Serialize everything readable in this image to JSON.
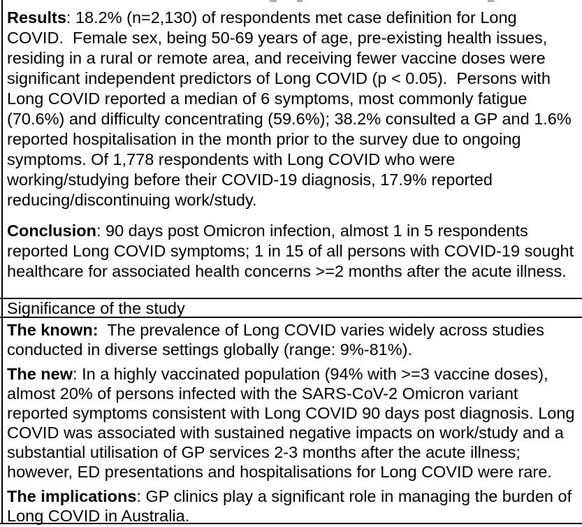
{
  "page": {
    "background_color": "#ffffff",
    "text_color": "#000000",
    "rule_color": "#000000",
    "remnant_color": "#b3aba4"
  },
  "abstract": {
    "paragraphs": [
      {
        "label": "Results",
        "sep": ": ",
        "text": "18.2% (n=2,130) of respondents met case definition for Long COVID.  Female sex, being 50-69 years of age, pre-existing health issues, residing in a rural or remote area, and receiving fewer vaccine doses were significant independent predictors of Long COVID (p < 0.05).  Persons with Long COVID reported a median of 6 symptoms, most commonly fatigue (70.6%) and difficulty concentrating (59.6%); 38.2% consulted a GP and 1.6% reported hospitalisation in the month prior to the survey due to ongoing symptoms. Of 1,778 respondents with Long COVID who were working/studying before their COVID-19 diagnosis, 17.9% reported reducing/discontinuing work/study."
      },
      {
        "label": "Conclusion",
        "sep": ": ",
        "text": "90 days post Omicron infection, almost 1 in 5 respondents reported Long COVID symptoms; 1 in 15 of all persons with COVID-19 sought healthcare for associated health concerns >=2 months after the acute illness."
      }
    ]
  },
  "significance": {
    "heading": "Significance of the study",
    "paragraphs": [
      {
        "label": "The known:",
        "sep": "  ",
        "text": "The prevalence of Long COVID varies widely across studies conducted in diverse settings globally (range: 9%-81%)."
      },
      {
        "label": "The new",
        "sep": ": ",
        "text": "In a highly vaccinated population (94% with >=3 vaccine doses), almost 20% of persons infected with the SARS-CoV-2 Omicron variant reported symptoms consistent with Long COVID 90 days post diagnosis. Long COVID was associated with sustained negative impacts on work/study and a substantial utilisation of GP services 2-3 months after the acute illness; however, ED presentations and hospitalisations for Long COVID were rare."
      },
      {
        "label": "The implications",
        "sep": ": ",
        "text": "GP clinics play a significant role in managing the burden of Long COVID in Australia."
      }
    ]
  }
}
